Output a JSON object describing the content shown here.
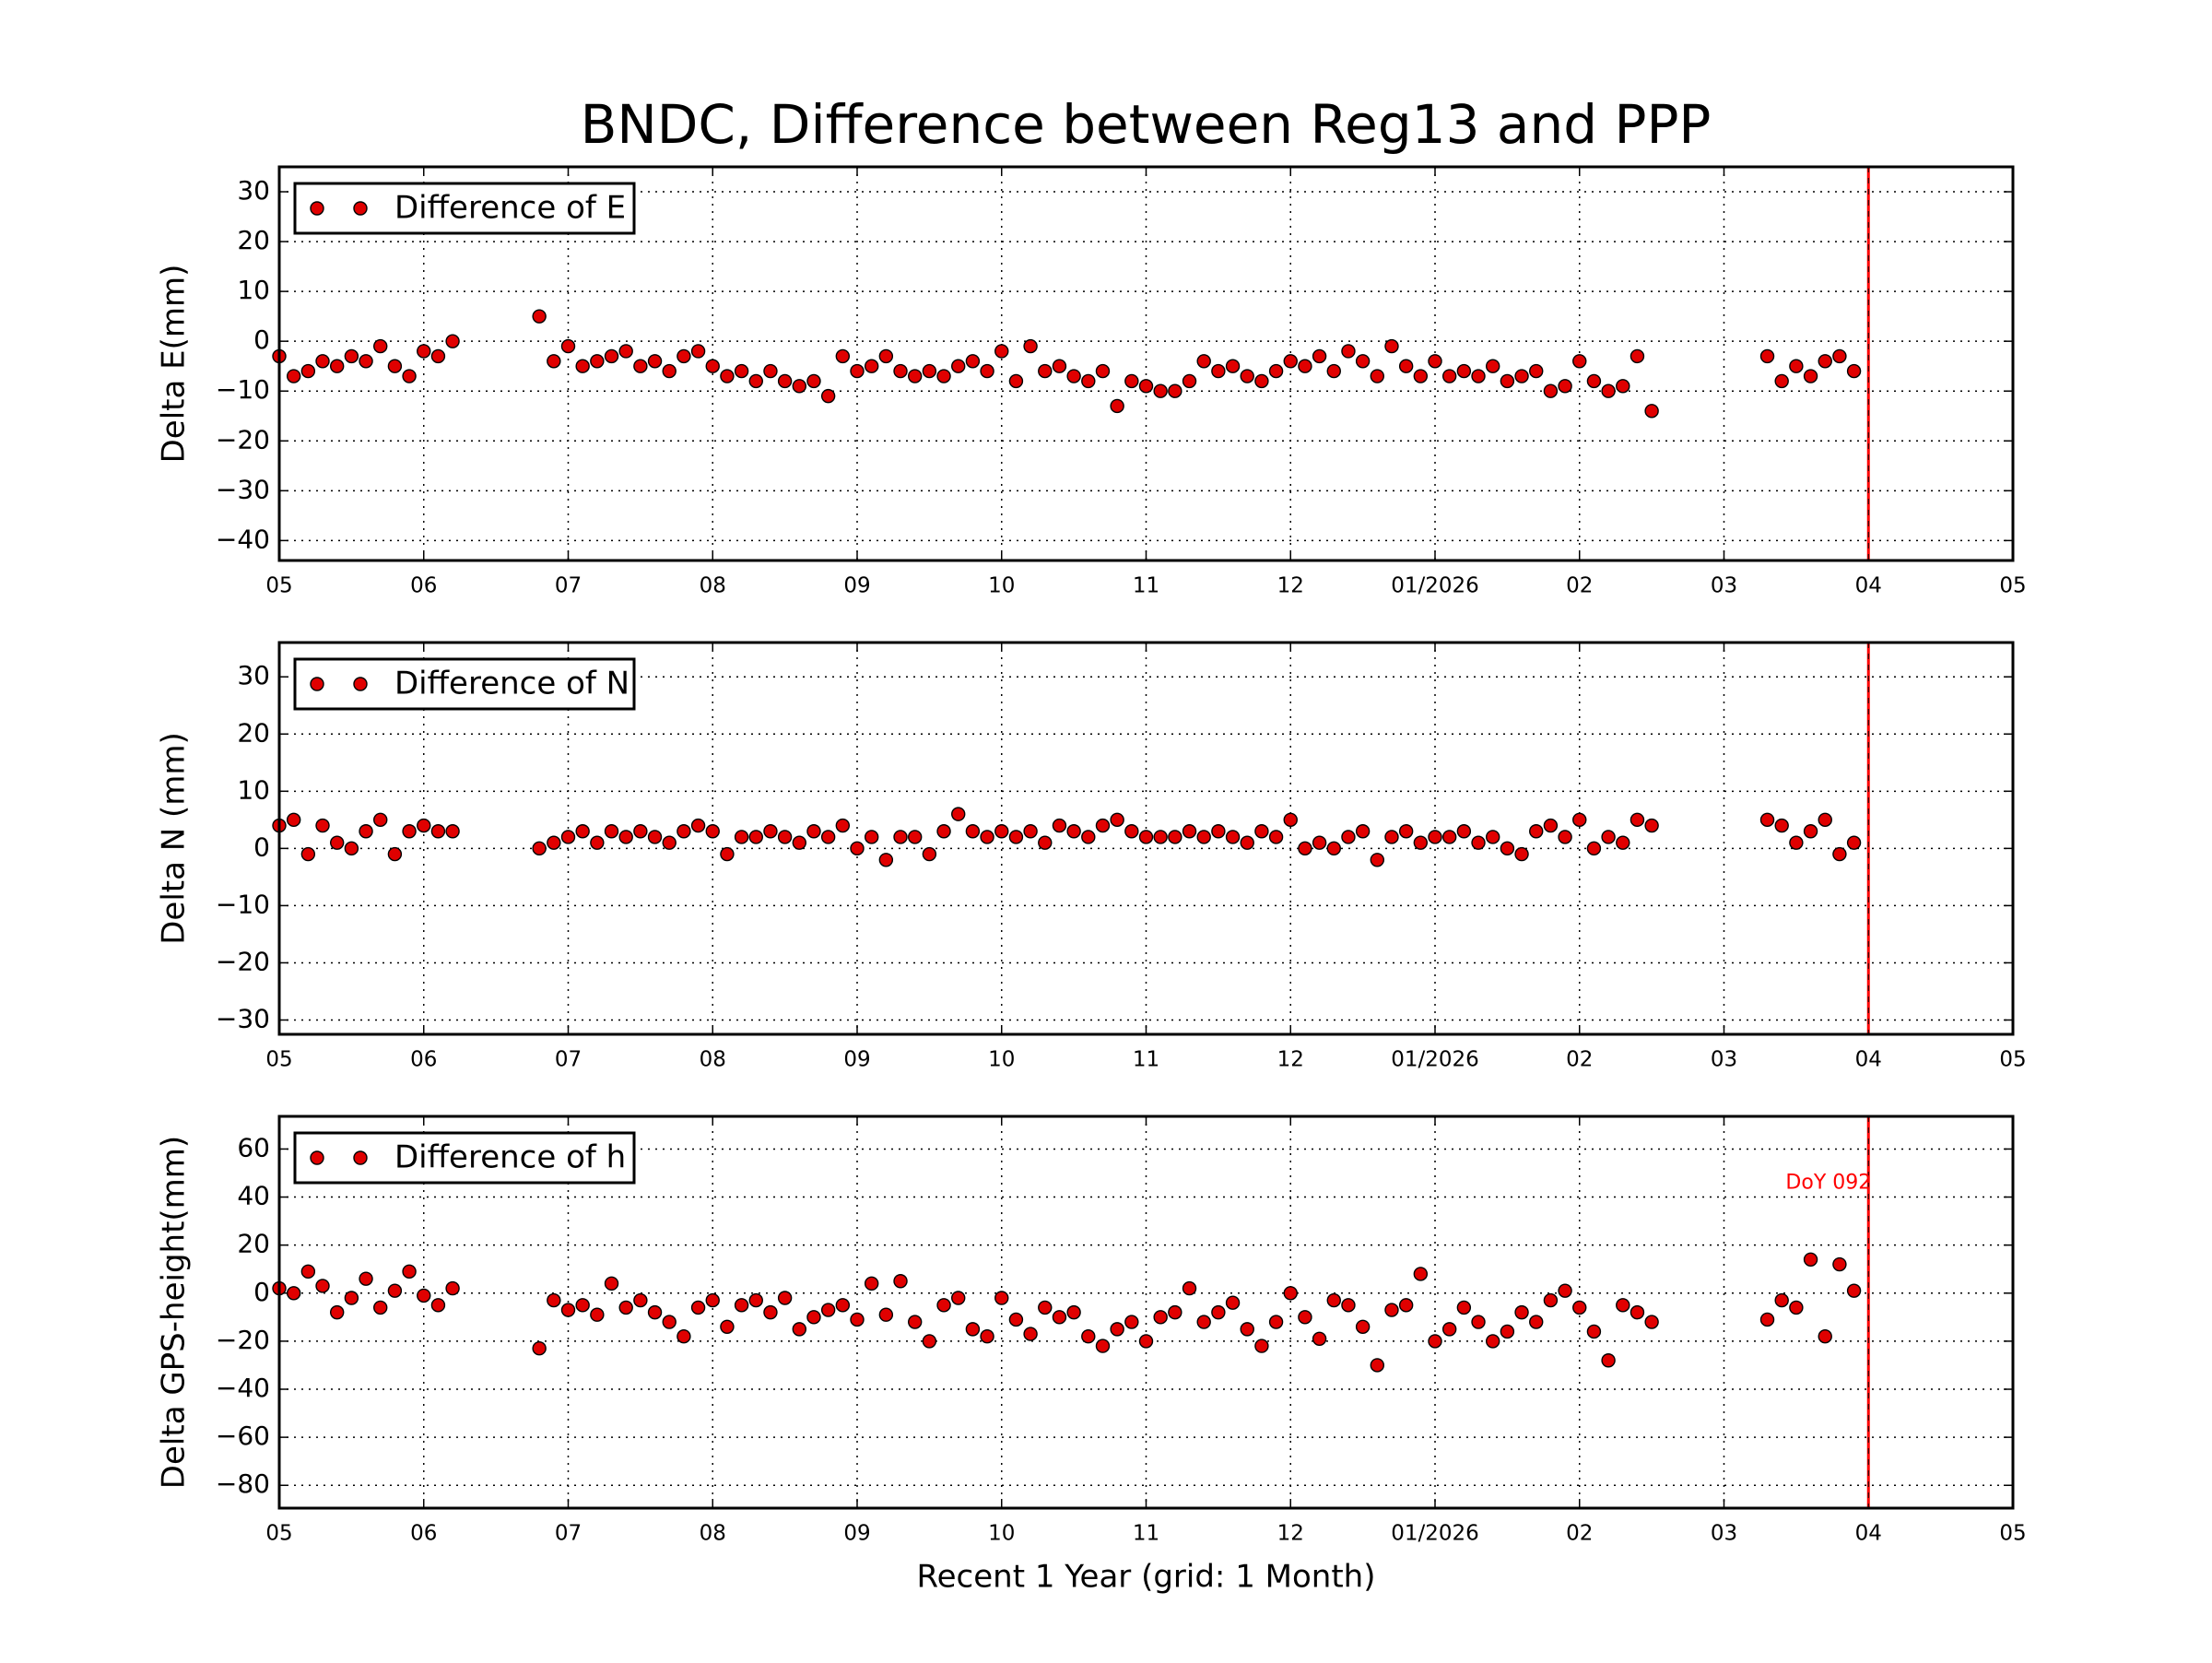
{
  "chart_data": [
    {
      "type": "scatter",
      "title": "BNDC, Difference between Reg13 and PPP",
      "ylabel": "Delta E(mm)",
      "x": [
        0,
        0.1,
        0.2,
        0.3,
        0.4,
        0.5,
        0.6,
        0.7,
        0.8,
        0.9,
        1.0,
        1.1,
        1.2,
        1.8,
        1.9,
        2.0,
        2.1,
        2.2,
        2.3,
        2.4,
        2.5,
        2.6,
        2.7,
        2.8,
        2.9,
        3.0,
        3.1,
        3.2,
        3.3,
        3.4,
        3.5,
        3.6,
        3.7,
        3.8,
        3.9,
        4.0,
        4.1,
        4.2,
        4.3,
        4.4,
        4.5,
        4.6,
        4.7,
        4.8,
        4.9,
        5.0,
        5.1,
        5.2,
        5.3,
        5.4,
        5.5,
        5.6,
        5.7,
        5.8,
        5.9,
        6.0,
        6.1,
        6.2,
        6.3,
        6.4,
        6.5,
        6.6,
        6.7,
        6.8,
        6.9,
        7.0,
        7.1,
        7.2,
        7.3,
        7.4,
        7.5,
        7.6,
        7.7,
        7.8,
        7.9,
        8.0,
        8.1,
        8.2,
        8.3,
        8.4,
        8.5,
        8.6,
        8.7,
        8.8,
        8.9,
        9.0,
        9.1,
        9.2,
        9.3,
        9.4,
        9.5,
        10.3,
        10.4,
        10.5,
        10.6,
        10.7,
        10.8,
        10.9
      ],
      "series": [
        {
          "name": "Difference of E",
          "color": "#e00000",
          "values": [
            -3,
            -7,
            -6,
            -4,
            -5,
            -3,
            -4,
            -1,
            -5,
            -7,
            -2,
            -3,
            0,
            5,
            -4,
            -1,
            -5,
            -4,
            -3,
            -2,
            -5,
            -4,
            -6,
            -3,
            -2,
            -5,
            -7,
            -6,
            -8,
            -6,
            -8,
            -9,
            -8,
            -11,
            -3,
            -6,
            -5,
            -3,
            -6,
            -7,
            -6,
            -7,
            -5,
            -4,
            -6,
            -2,
            -8,
            -1,
            -6,
            -5,
            -7,
            -8,
            -6,
            -13,
            -8,
            -9,
            -10,
            -10,
            -8,
            -4,
            -6,
            -5,
            -7,
            -8,
            -6,
            -4,
            -5,
            -3,
            -6,
            -2,
            -4,
            -7,
            -1,
            -5,
            -7,
            -4,
            -7,
            -6,
            -7,
            -5,
            -8,
            -7,
            -6,
            -10,
            -9,
            -4,
            -8,
            -10,
            -9,
            -3,
            -14,
            -3,
            -8,
            -5,
            -7,
            -4,
            -3,
            -6
          ]
        }
      ],
      "xlim": [
        0,
        12
      ],
      "xticks": [
        {
          "value": 0,
          "label": "05"
        },
        {
          "value": 1,
          "label": "06"
        },
        {
          "value": 2,
          "label": "07"
        },
        {
          "value": 3,
          "label": "08"
        },
        {
          "value": 4,
          "label": "09"
        },
        {
          "value": 5,
          "label": "10"
        },
        {
          "value": 6,
          "label": "11"
        },
        {
          "value": 7,
          "label": "12"
        },
        {
          "value": 8,
          "label": "01/2026"
        },
        {
          "value": 9,
          "label": "02"
        },
        {
          "value": 10,
          "label": "03"
        },
        {
          "value": 11,
          "label": "04"
        },
        {
          "value": 12,
          "label": "05"
        }
      ],
      "ylim": [
        -44,
        35
      ],
      "yticks": [
        {
          "value": -40,
          "label": "−40"
        },
        {
          "value": -30,
          "label": "−30"
        },
        {
          "value": -20,
          "label": "−20"
        },
        {
          "value": -10,
          "label": "−10"
        },
        0,
        10,
        20,
        30
      ],
      "grid": true,
      "legend": "upper-left",
      "vline": 11,
      "vline_color": "#ff0000"
    },
    {
      "type": "scatter",
      "ylabel": "Delta N (mm)",
      "x": [
        0,
        0.1,
        0.2,
        0.3,
        0.4,
        0.5,
        0.6,
        0.7,
        0.8,
        0.9,
        1.0,
        1.1,
        1.2,
        1.8,
        1.9,
        2.0,
        2.1,
        2.2,
        2.3,
        2.4,
        2.5,
        2.6,
        2.7,
        2.8,
        2.9,
        3.0,
        3.1,
        3.2,
        3.3,
        3.4,
        3.5,
        3.6,
        3.7,
        3.8,
        3.9,
        4.0,
        4.1,
        4.2,
        4.3,
        4.4,
        4.5,
        4.6,
        4.7,
        4.8,
        4.9,
        5.0,
        5.1,
        5.2,
        5.3,
        5.4,
        5.5,
        5.6,
        5.7,
        5.8,
        5.9,
        6.0,
        6.1,
        6.2,
        6.3,
        6.4,
        6.5,
        6.6,
        6.7,
        6.8,
        6.9,
        7.0,
        7.1,
        7.2,
        7.3,
        7.4,
        7.5,
        7.6,
        7.7,
        7.8,
        7.9,
        8.0,
        8.1,
        8.2,
        8.3,
        8.4,
        8.5,
        8.6,
        8.7,
        8.8,
        8.9,
        9.0,
        9.1,
        9.2,
        9.3,
        9.4,
        9.5,
        10.3,
        10.4,
        10.5,
        10.6,
        10.7,
        10.8,
        10.9
      ],
      "series": [
        {
          "name": "Difference of N",
          "color": "#e00000",
          "values": [
            4,
            5,
            -1,
            4,
            1,
            0,
            3,
            5,
            -1,
            3,
            4,
            3,
            3,
            0,
            1,
            2,
            3,
            1,
            3,
            2,
            3,
            2,
            1,
            3,
            4,
            3,
            -1,
            2,
            2,
            3,
            2,
            1,
            3,
            2,
            4,
            0,
            2,
            -2,
            2,
            2,
            -1,
            3,
            6,
            3,
            2,
            3,
            2,
            3,
            1,
            4,
            3,
            2,
            4,
            5,
            3,
            2,
            2,
            2,
            3,
            2,
            3,
            2,
            1,
            3,
            2,
            5,
            0,
            1,
            0,
            2,
            3,
            -2,
            2,
            3,
            1,
            2,
            2,
            3,
            1,
            2,
            0,
            -1,
            3,
            4,
            2,
            5,
            0,
            2,
            1,
            5,
            4,
            5,
            4,
            1,
            3,
            5,
            -1,
            1
          ]
        }
      ],
      "xlim": [
        0,
        12
      ],
      "xticks": [
        {
          "value": 0,
          "label": "05"
        },
        {
          "value": 1,
          "label": "06"
        },
        {
          "value": 2,
          "label": "07"
        },
        {
          "value": 3,
          "label": "08"
        },
        {
          "value": 4,
          "label": "09"
        },
        {
          "value": 5,
          "label": "10"
        },
        {
          "value": 6,
          "label": "11"
        },
        {
          "value": 7,
          "label": "12"
        },
        {
          "value": 8,
          "label": "01/2026"
        },
        {
          "value": 9,
          "label": "02"
        },
        {
          "value": 10,
          "label": "03"
        },
        {
          "value": 11,
          "label": "04"
        },
        {
          "value": 12,
          "label": "05"
        }
      ],
      "ylim": [
        -32.5,
        36
      ],
      "yticks": [
        {
          "value": -30,
          "label": "−30"
        },
        {
          "value": -20,
          "label": "−20"
        },
        {
          "value": -10,
          "label": "−10"
        },
        0,
        10,
        20,
        30
      ],
      "grid": true,
      "legend": "upper-left",
      "vline": 11,
      "vline_color": "#ff0000"
    },
    {
      "type": "scatter",
      "ylabel": "Delta GPS-height(mm)",
      "xlabel": "Recent 1 Year (grid: 1 Month)",
      "annotation": "DoY 092",
      "x": [
        0,
        0.1,
        0.2,
        0.3,
        0.4,
        0.5,
        0.6,
        0.7,
        0.8,
        0.9,
        1.0,
        1.1,
        1.2,
        1.8,
        1.9,
        2.0,
        2.1,
        2.2,
        2.3,
        2.4,
        2.5,
        2.6,
        2.7,
        2.8,
        2.9,
        3.0,
        3.1,
        3.2,
        3.3,
        3.4,
        3.5,
        3.6,
        3.7,
        3.8,
        3.9,
        4.0,
        4.1,
        4.2,
        4.3,
        4.4,
        4.5,
        4.6,
        4.7,
        4.8,
        4.9,
        5.0,
        5.1,
        5.2,
        5.3,
        5.4,
        5.5,
        5.6,
        5.7,
        5.8,
        5.9,
        6.0,
        6.1,
        6.2,
        6.3,
        6.4,
        6.5,
        6.6,
        6.7,
        6.8,
        6.9,
        7.0,
        7.1,
        7.2,
        7.3,
        7.4,
        7.5,
        7.6,
        7.7,
        7.8,
        7.9,
        8.0,
        8.1,
        8.2,
        8.3,
        8.4,
        8.5,
        8.6,
        8.7,
        8.8,
        8.9,
        9.0,
        9.1,
        9.2,
        9.3,
        9.4,
        9.5,
        10.3,
        10.4,
        10.5,
        10.6,
        10.7,
        10.8,
        10.9
      ],
      "series": [
        {
          "name": "Difference of h",
          "color": "#e00000",
          "values": [
            2,
            0,
            9,
            3,
            -8,
            -2,
            6,
            -6,
            1,
            9,
            -1,
            -5,
            2,
            -23,
            -3,
            -7,
            -5,
            -9,
            4,
            -6,
            -3,
            -8,
            -12,
            -18,
            -6,
            -3,
            -14,
            -5,
            -3,
            -8,
            -2,
            -15,
            -10,
            -7,
            -5,
            -11,
            4,
            -9,
            5,
            -12,
            -20,
            -5,
            -2,
            -15,
            -18,
            -2,
            -11,
            -17,
            -6,
            -10,
            -8,
            -18,
            -22,
            -15,
            -12,
            -20,
            -10,
            -8,
            2,
            -12,
            -8,
            -4,
            -15,
            -22,
            -12,
            0,
            -10,
            -19,
            -3,
            -5,
            -14,
            -30,
            -7,
            -5,
            8,
            -20,
            -15,
            -6,
            -12,
            -20,
            -16,
            -8,
            -12,
            -3,
            1,
            -6,
            -16,
            -28,
            -5,
            -8,
            -12,
            -11,
            -3,
            -6,
            14,
            -18,
            12,
            1
          ]
        }
      ],
      "xlim": [
        0,
        12
      ],
      "xticks": [
        {
          "value": 0,
          "label": "05"
        },
        {
          "value": 1,
          "label": "06"
        },
        {
          "value": 2,
          "label": "07"
        },
        {
          "value": 3,
          "label": "08"
        },
        {
          "value": 4,
          "label": "09"
        },
        {
          "value": 5,
          "label": "10"
        },
        {
          "value": 6,
          "label": "11"
        },
        {
          "value": 7,
          "label": "12"
        },
        {
          "value": 8,
          "label": "01/2026"
        },
        {
          "value": 9,
          "label": "02"
        },
        {
          "value": 10,
          "label": "03"
        },
        {
          "value": 11,
          "label": "04"
        },
        {
          "value": 12,
          "label": "05"
        }
      ],
      "ylim": [
        -89.5,
        73.6
      ],
      "yticks": [
        {
          "value": -80,
          "label": "−80"
        },
        {
          "value": -60,
          "label": "−60"
        },
        {
          "value": -40,
          "label": "−40"
        },
        {
          "value": -20,
          "label": "−20"
        },
        0,
        20,
        40,
        60
      ],
      "grid": true,
      "legend": "upper-left",
      "vline": 11,
      "vline_color": "#ff0000"
    }
  ]
}
